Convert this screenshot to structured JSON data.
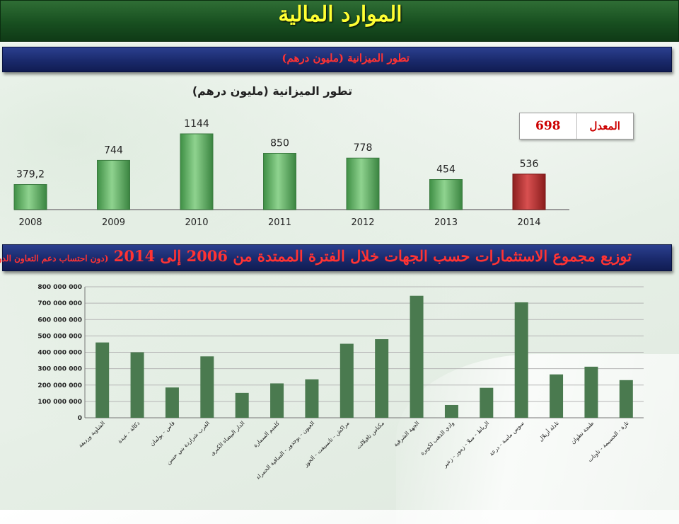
{
  "page_title": "الموارد المالية",
  "section1": {
    "title": "تطور الميزانية (مليون درهم)"
  },
  "section2": {
    "title": "توزيع مجموع الاستثمارات حسب الجهات خلال الفترة الممتدة من 2006 إلى 2014",
    "note": "(دون احتساب دعم التعاون الدولي)"
  },
  "average": {
    "label": "المعدل",
    "value": "698"
  },
  "colors": {
    "bar_green": "#6cbf6c",
    "bar_highlight": "#b83232",
    "bar_dark_green": "#4a7a4f",
    "section_bar": "#1a2a6c",
    "title_bar": "#184f20"
  },
  "chart_data": [
    {
      "type": "bar",
      "title": "تطور الميزانية (مليون درهم)",
      "categories": [
        "2008",
        "2009",
        "2010",
        "2011",
        "2012",
        "2013",
        "2014"
      ],
      "values": [
        379.2,
        744,
        1144,
        850,
        778,
        454,
        536
      ],
      "value_labels": [
        "379,2",
        "744",
        "1144",
        "850",
        "778",
        "454",
        "536"
      ],
      "highlight_category": "2014",
      "ylim": [
        0,
        1144
      ],
      "grid": false,
      "legend": "none"
    },
    {
      "type": "bar",
      "categories": [
        "الشاوية ورديغة",
        "دكالة - عبدة",
        "فاس - بولمان",
        "الغرب شراردة بني حسن",
        "الدار البيضاء الكبرى",
        "كلميم السمارة",
        "العيون - بوجدور - الساقية الحمراء",
        "مراكش - تانسيفت - الحوز",
        "مكناس تافيلالت",
        "الجهة الشرقية",
        "وادي الذهب لكويرة",
        "الرباط - سلا - زمور - زعير",
        "سوس ماسة - درعة",
        "تادلة أزيلال",
        "طنجة تطوان",
        "تازة - الحسيمة - تاونات"
      ],
      "values": [
        460000000,
        400000000,
        185000000,
        375000000,
        152000000,
        210000000,
        235000000,
        452000000,
        480000000,
        745000000,
        78000000,
        183000000,
        705000000,
        265000000,
        312000000,
        230000000
      ],
      "yticks": [
        "0",
        "100 000 000",
        "200 000 000",
        "300 000 000",
        "400 000 000",
        "500 000 000",
        "600 000 000",
        "700 000 000",
        "800 000 000"
      ],
      "ylim": [
        0,
        800000000
      ],
      "grid": true,
      "legend": "none"
    }
  ]
}
